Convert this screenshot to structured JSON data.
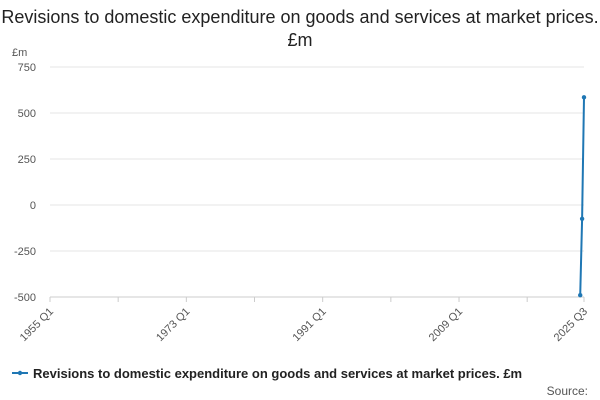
{
  "chart_data": {
    "type": "line",
    "title": "Revisions to domestic expenditure on goods and services at market prices. £m",
    "ylabel": "£m",
    "xlabel": "",
    "ylim": [
      -500,
      750
    ],
    "yticks": [
      750,
      500,
      250,
      0,
      -250,
      -500
    ],
    "x_range": [
      "1955 Q1",
      "2025 Q3"
    ],
    "x_tick_labels": [
      "1955 Q1",
      "1973 Q1",
      "1991 Q1",
      "2009 Q1",
      "2025 Q3"
    ],
    "grid": true,
    "legend_position": "bottom",
    "source": "Source:",
    "series": [
      {
        "name": "Revisions to domestic expenditure on goods and services at market prices. £m",
        "color": "#1f77b4",
        "points": [
          {
            "x": "2025 Q1",
            "y": -490
          },
          {
            "x": "2025 Q2",
            "y": -75
          },
          {
            "x": "2025 Q3",
            "y": 585
          }
        ]
      }
    ]
  }
}
